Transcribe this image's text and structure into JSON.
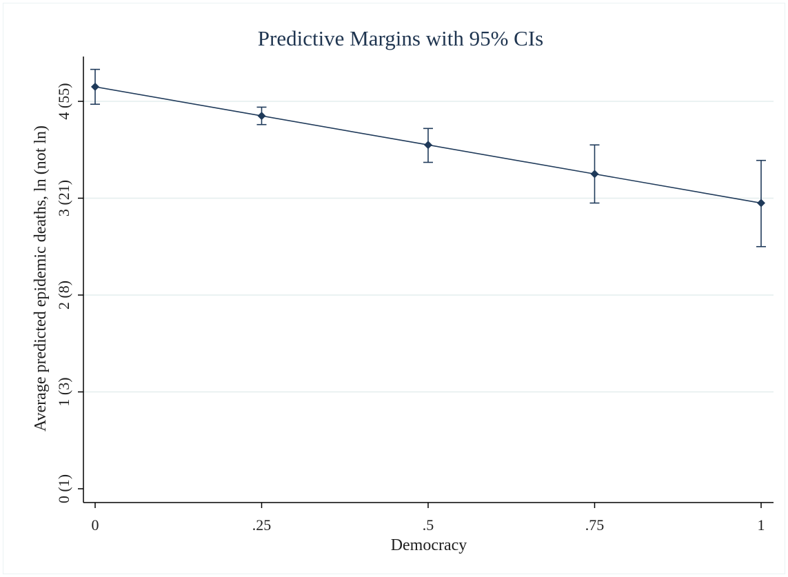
{
  "chart_data": {
    "type": "line",
    "title": "Predictive Margins with 95% CIs",
    "xlabel": "Democracy",
    "ylabel": "Average predicted epidemic deaths, ln (not ln)",
    "x": [
      0,
      0.25,
      0.5,
      0.75,
      1
    ],
    "x_tick_labels": [
      "0",
      ".25",
      ".5",
      ".75",
      "1"
    ],
    "y_ticks": [
      0,
      1,
      2,
      3,
      4
    ],
    "y_tick_labels": [
      "0 (1)",
      "1 (3)",
      "2 (8)",
      "3 (21)",
      "4 (55)"
    ],
    "xlim": [
      0,
      1
    ],
    "ylim": [
      0,
      4.4
    ],
    "grid": "horizontal",
    "series": [
      {
        "values": [
          4.15,
          3.85,
          3.55,
          3.25,
          2.95
        ],
        "ci_low": [
          3.97,
          3.76,
          3.37,
          2.95,
          2.5
        ],
        "ci_high": [
          4.33,
          3.94,
          3.72,
          3.55,
          3.39
        ]
      }
    ],
    "colors": {
      "line": "#1f3a5a",
      "grid": "#e4eeee",
      "axis": "#000000"
    }
  }
}
